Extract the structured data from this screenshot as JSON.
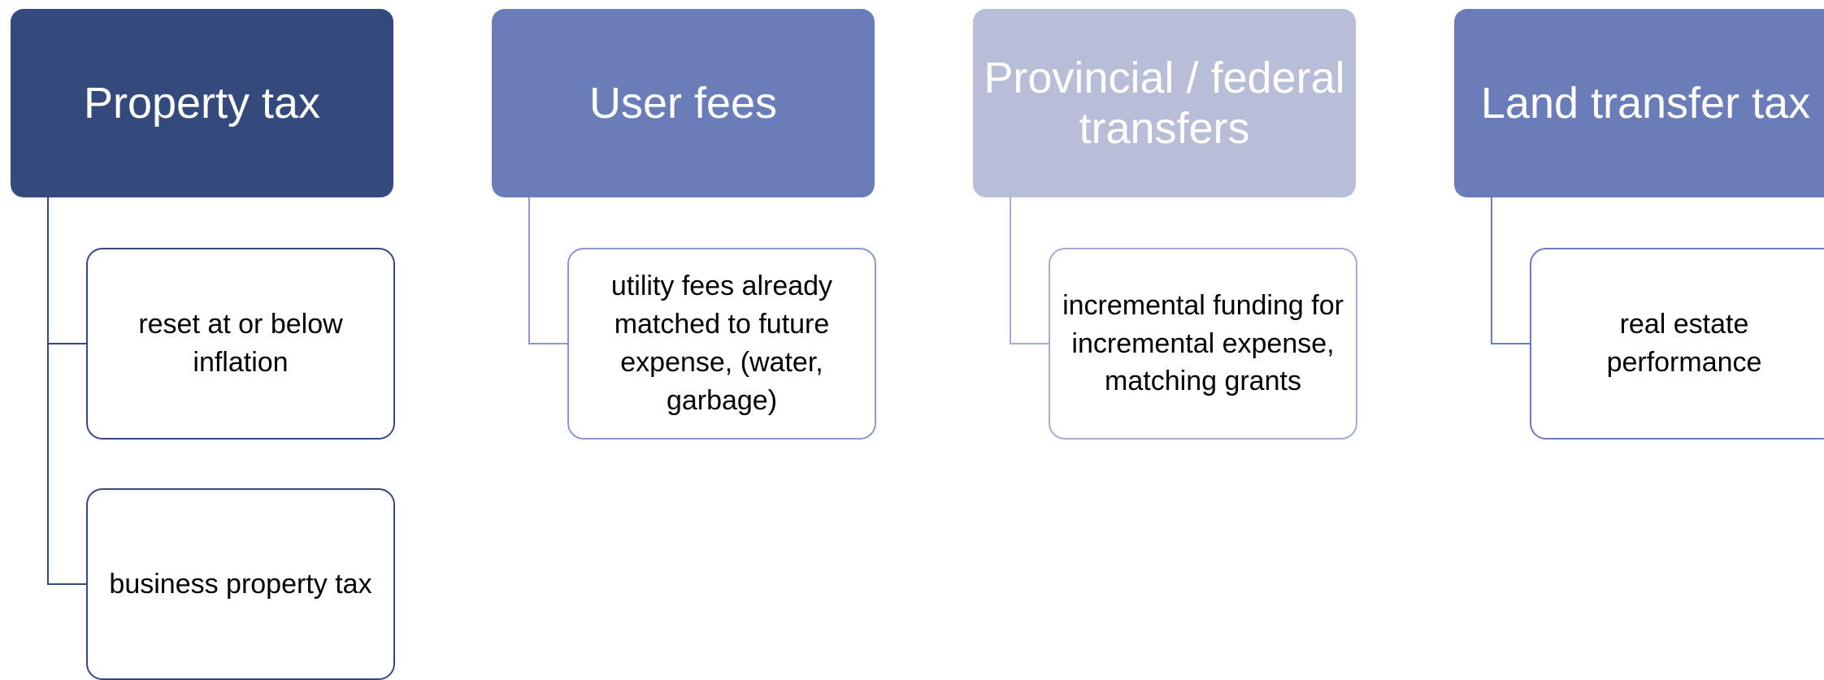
{
  "columns": [
    {
      "title": "Property tax",
      "items": [
        "reset at or below inflation",
        "business property tax"
      ]
    },
    {
      "title": "User fees",
      "items": [
        "utility fees already matched to future expense, (water, garbage)"
      ]
    },
    {
      "title": "Provincial / federal transfers",
      "items": [
        "incremental funding for incremental expense, matching grants"
      ]
    },
    {
      "title": "Land transfer tax",
      "items": [
        "real estate performance"
      ]
    }
  ]
}
